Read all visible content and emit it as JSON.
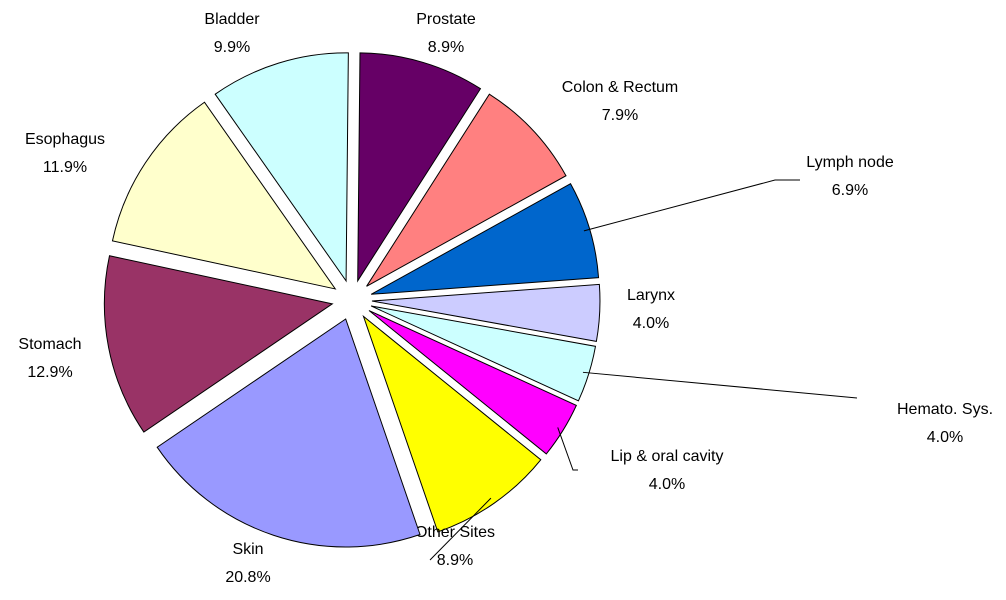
{
  "chart_data": {
    "type": "pie",
    "categories": [
      "Prostate",
      "Colon & Rectum",
      "Lymph node",
      "Larynx",
      "Hemato. Sys.",
      "Lip & oral cavity",
      "Other Sites",
      "Skin",
      "Stomach",
      "Esophagus",
      "Bladder"
    ],
    "values": [
      8.9,
      7.9,
      6.9,
      4.0,
      4.0,
      4.0,
      8.9,
      20.8,
      12.9,
      11.9,
      9.9
    ],
    "value_labels": [
      "8.9%",
      "7.9%",
      "6.9%",
      "4.0%",
      "4.0%",
      "4.0%",
      "8.9%",
      "20.8%",
      "12.9%",
      "11.9%",
      "9.9%"
    ],
    "colors": [
      "#660066",
      "#ff8080",
      "#0066cc",
      "#ccccff",
      "#ccffff",
      "#ff00ff",
      "#ffff00",
      "#9999ff",
      "#993366",
      "#ffffcc",
      "#ccffff"
    ]
  }
}
